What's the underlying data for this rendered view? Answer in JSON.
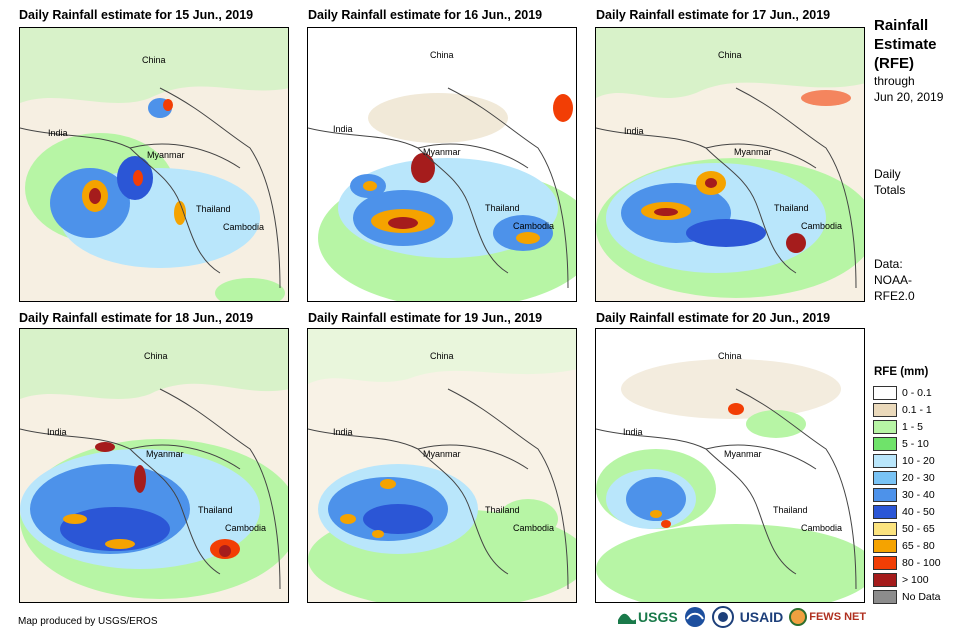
{
  "panels": [
    {
      "title": "Daily Rainfall estimate for 15 Jun., 2019"
    },
    {
      "title": "Daily Rainfall estimate for 16 Jun., 2019"
    },
    {
      "title": "Daily Rainfall estimate for 17 Jun., 2019"
    },
    {
      "title": "Daily Rainfall estimate for 18 Jun., 2019"
    },
    {
      "title": "Daily Rainfall estimate for 19 Jun., 2019"
    },
    {
      "title": "Daily Rainfall estimate for 20 Jun., 2019"
    }
  ],
  "map_labels": {
    "china": "China",
    "india": "India",
    "myanmar": "Myanmar",
    "thailand": "Thailand",
    "cambodia": "Cambodia"
  },
  "sidebar": {
    "title_line1": "Rainfall",
    "title_line2": "Estimate",
    "title_line3": "(RFE)",
    "through": "through",
    "date": "Jun 20, 2019",
    "totals_line1": "Daily",
    "totals_line2": "Totals",
    "data_line1": "Data:",
    "data_line2": "NOAA-",
    "data_line3": "RFE2.0"
  },
  "legend": {
    "title": "RFE (mm)",
    "items": [
      {
        "label": "0 - 0.1",
        "color": "#ffffff"
      },
      {
        "label": "0.1 - 1",
        "color": "#ead9bb"
      },
      {
        "label": "1 - 5",
        "color": "#b7f5a5"
      },
      {
        "label": "5 - 10",
        "color": "#6fe36a"
      },
      {
        "label": "10 - 20",
        "color": "#b9e6fb"
      },
      {
        "label": "20 - 30",
        "color": "#79c3f5"
      },
      {
        "label": "30 - 40",
        "color": "#4d92ea"
      },
      {
        "label": "40 - 50",
        "color": "#2b56d6"
      },
      {
        "label": "50 - 65",
        "color": "#fbe37e"
      },
      {
        "label": "65 - 80",
        "color": "#f5a300"
      },
      {
        "label": "80 - 100",
        "color": "#f23e05"
      },
      {
        "label": "> 100",
        "color": "#a51c1c"
      },
      {
        "label": "No Data",
        "color": "#8c8c8c"
      }
    ]
  },
  "credit": "Map produced by USGS/EROS",
  "logos": {
    "usgs": "USGS",
    "usaid": "USAID",
    "fewsnet": "FEWS NET"
  }
}
